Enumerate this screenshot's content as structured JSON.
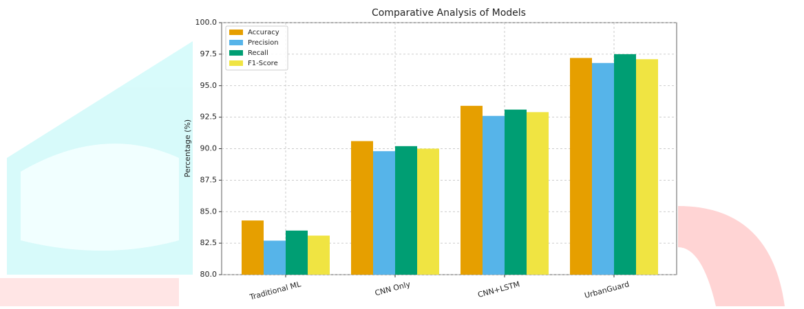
{
  "chart_data": {
    "type": "grouped_bar",
    "title": "Comparative Analysis of Models",
    "y_label": "Percentage (%)",
    "categories": [
      "Traditional ML",
      "CNN Only",
      "CNN+LSTM",
      "UrbanGuard"
    ],
    "series": [
      {
        "name": "Accuracy",
        "color": "#E69F00",
        "values": [
          84.3,
          90.6,
          93.4,
          97.2
        ]
      },
      {
        "name": "Precision",
        "color": "#56B4E9",
        "values": [
          82.7,
          89.8,
          92.6,
          96.8
        ]
      },
      {
        "name": "Recall",
        "color": "#009E73",
        "values": [
          83.5,
          90.2,
          93.1,
          97.5
        ]
      },
      {
        "name": "F1-Score",
        "color": "#F0E442",
        "values": [
          83.1,
          90.0,
          92.9,
          97.1
        ]
      }
    ],
    "ylim": [
      80,
      100
    ],
    "yticks": [
      {
        "value": 80,
        "label": "80.0"
      },
      {
        "value": 82.5,
        "label": "82.5"
      },
      {
        "value": 85,
        "label": "85.0"
      },
      {
        "value": 87.5,
        "label": "87.5"
      },
      {
        "value": 90,
        "label": "90.0"
      },
      {
        "value": 92.5,
        "label": "92.5"
      },
      {
        "value": 95,
        "label": "95.0"
      },
      {
        "value": 97.5,
        "label": "97.5"
      },
      {
        "value": 100,
        "label": "100.0"
      }
    ],
    "grid": true,
    "legend": "upper-left"
  }
}
